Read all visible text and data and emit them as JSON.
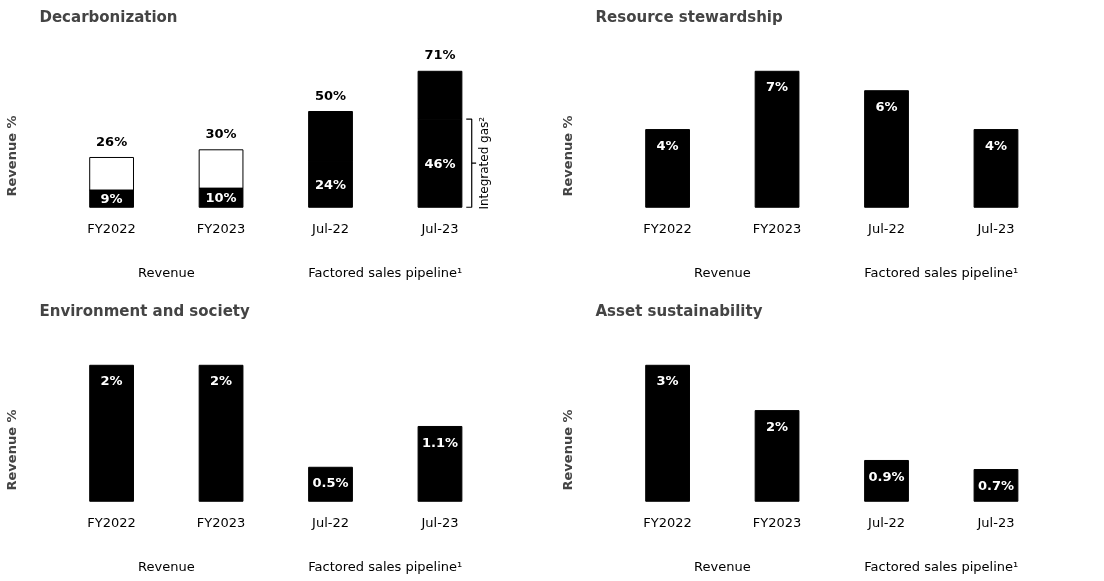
{
  "chart_data": [
    {
      "type": "bar",
      "title": "Decarbonization",
      "ylabel": "Revenue %",
      "categories": [
        "FY2022",
        "FY2023",
        "Jul-22",
        "Jul-23"
      ],
      "stacked": true,
      "series": [
        {
          "color": "#000000",
          "values": [
            9,
            10,
            24,
            46
          ],
          "value_labels": [
            "9%",
            "10%",
            "24%",
            "46%"
          ]
        },
        {
          "colors": [
            "#ffffff",
            "#ffffff",
            "#000000",
            "#000000"
          ],
          "values": [
            17,
            20,
            26,
            25
          ]
        }
      ],
      "totals": [
        "26%",
        "30%",
        "50%",
        "71%"
      ],
      "annotations": [
        "Revenue",
        "Factored sales pipeline¹",
        "Integrated gas²"
      ]
    },
    {
      "type": "bar",
      "title": "Resource stewardship",
      "ylabel": "Revenue %",
      "categories": [
        "FY2022",
        "FY2023",
        "Jul-22",
        "Jul-23"
      ],
      "values": [
        4,
        7,
        6,
        4
      ],
      "color": "#000000",
      "value_labels": [
        "4%",
        "7%",
        "6%",
        "4%"
      ],
      "annotations": [
        "Revenue",
        "Factored sales pipeline¹"
      ]
    },
    {
      "type": "bar",
      "title": "Environment and society",
      "ylabel": "Revenue %",
      "categories": [
        "FY2022",
        "FY2023",
        "Jul-22",
        "Jul-23"
      ],
      "values": [
        2,
        2,
        0.5,
        1.1
      ],
      "color": "#000000",
      "value_labels": [
        "2%",
        "2%",
        "0.5%",
        "1.1%"
      ],
      "annotations": [
        "Revenue",
        "Factored sales pipeline¹"
      ]
    },
    {
      "type": "bar",
      "title": "Asset sustainability",
      "ylabel": "Revenue %",
      "categories": [
        "FY2022",
        "FY2023",
        "Jul-22",
        "Jul-23"
      ],
      "values": [
        3,
        2,
        0.9,
        0.7
      ],
      "color": "#000000",
      "value_labels": [
        "3%",
        "2%",
        "0.9%",
        "0.7%"
      ],
      "annotations": [
        "Revenue",
        "Factored sales pipeline¹"
      ]
    }
  ]
}
